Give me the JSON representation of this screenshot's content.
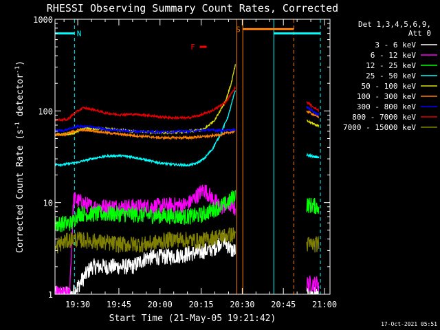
{
  "chart_data": {
    "type": "line",
    "title": "RHESSI Observing Summary Count Rates, Corrected",
    "xlabel": "Start Time (21-May-05 19:21:42)",
    "ylabel_main": "Corrected Count Rate (s",
    "ylabel_sup1": "-1",
    "ylabel_mid": " detector",
    "ylabel_sup2": "-1",
    "ylabel_end": ")",
    "yscale": "log",
    "ylim": [
      1,
      1000
    ],
    "xlim_min": [
      1161.7,
      1262
    ],
    "y_ticks": [
      {
        "value": 1,
        "label": "1"
      },
      {
        "value": 10,
        "label": "10"
      },
      {
        "value": 100,
        "label": "100"
      },
      {
        "value": 1000,
        "label": "1000"
      }
    ],
    "x_ticks": [
      {
        "value": 1170,
        "label": "19:30"
      },
      {
        "value": 1185,
        "label": "19:45"
      },
      {
        "value": 1200,
        "label": "20:00"
      },
      {
        "value": 1215,
        "label": "20:15"
      },
      {
        "value": 1230,
        "label": "20:30"
      },
      {
        "value": 1245,
        "label": "20:45"
      },
      {
        "value": 1260,
        "label": "21:00"
      }
    ],
    "legend_header": [
      "Det 1,3,4,5,6,9,",
      "Att 0"
    ],
    "legend_placement": "right",
    "series": [
      {
        "name": "3 - 6 keV",
        "color": "#ffffff",
        "segments": [
          [
            [
              1161.7,
              1.0
            ],
            [
              1168,
              1.0
            ],
            [
              1175,
              2.0
            ],
            [
              1190,
              2.0
            ],
            [
              1195,
              2.5
            ],
            [
              1205,
              2.6
            ],
            [
              1215,
              2.9
            ],
            [
              1220,
              3.2
            ],
            [
              1223,
              4.0
            ],
            [
              1226,
              3.0
            ],
            [
              1227.5,
              3.0
            ]
          ],
          [
            [
              1253.5,
              1.0
            ],
            [
              1258,
              1.0
            ]
          ]
        ]
      },
      {
        "name": "6 - 12 keV",
        "color": "#ff00ff",
        "segments": [
          [
            [
              1161.7,
              1.0
            ],
            [
              1167,
              1.0
            ],
            [
              1168.5,
              11.0
            ],
            [
              1175,
              9.0
            ],
            [
              1185,
              9.0
            ],
            [
              1195,
              9.0
            ],
            [
              1210,
              9.5
            ],
            [
              1216,
              14.0
            ],
            [
              1218,
              12.0
            ],
            [
              1222,
              9.0
            ],
            [
              1226,
              9.5
            ],
            [
              1227.5,
              8.5
            ]
          ],
          [
            [
              1253.5,
              1.3
            ],
            [
              1258,
              1.3
            ]
          ]
        ]
      },
      {
        "name": "12 - 25 keV",
        "color": "#00ff00",
        "segments": [
          [
            [
              1161.7,
              5.8
            ],
            [
              1168,
              6.0
            ],
            [
              1170,
              7.6
            ],
            [
              1175,
              7.5
            ],
            [
              1185,
              7.5
            ],
            [
              1200,
              7.2
            ],
            [
              1210,
              7.0
            ],
            [
              1215,
              7.3
            ],
            [
              1220,
              8.5
            ],
            [
              1225,
              10.0
            ],
            [
              1227.5,
              12.5
            ]
          ],
          [
            [
              1253.5,
              9.5
            ],
            [
              1258,
              9.0
            ]
          ]
        ]
      },
      {
        "name": "25 - 50 keV",
        "color": "#00ffff",
        "segments": [
          [
            [
              1161.7,
              26.0
            ],
            [
              1165,
              26.0
            ],
            [
              1170,
              27.5
            ],
            [
              1175,
              30.0
            ],
            [
              1180,
              32.0
            ],
            [
              1185,
              32.5
            ],
            [
              1190,
              31.5
            ],
            [
              1195,
              29.0
            ],
            [
              1200,
              27.0
            ],
            [
              1205,
              26.0
            ],
            [
              1210,
              25.5
            ],
            [
              1213,
              26.5
            ],
            [
              1216,
              30.0
            ],
            [
              1219,
              38.0
            ],
            [
              1222,
              55.0
            ],
            [
              1225,
              90.0
            ],
            [
              1227.5,
              170.0
            ]
          ],
          [
            [
              1253.5,
              33.0
            ],
            [
              1258,
              31.0
            ]
          ]
        ]
      },
      {
        "name": "50 - 100 keV",
        "color": "#e0e000",
        "segments": [
          [
            [
              1161.7,
              55.0
            ],
            [
              1168,
              56.0
            ],
            [
              1172,
              64.0
            ],
            [
              1180,
              64.0
            ],
            [
              1190,
              60.0
            ],
            [
              1200,
              58.0
            ],
            [
              1210,
              59.0
            ],
            [
              1216,
              63.0
            ],
            [
              1220,
              80.0
            ],
            [
              1224,
              130.0
            ],
            [
              1226,
              200.0
            ],
            [
              1227.5,
              320.0
            ]
          ],
          [
            [
              1253.5,
              78.0
            ],
            [
              1258,
              68.0
            ]
          ]
        ]
      },
      {
        "name": "100 - 300 keV",
        "color": "#ff8000",
        "segments": [
          [
            [
              1161.7,
              55.0
            ],
            [
              1165,
              55.0
            ],
            [
              1170,
              62.0
            ],
            [
              1175,
              61.0
            ],
            [
              1180,
              58.0
            ],
            [
              1190,
              54.0
            ],
            [
              1200,
              51.0
            ],
            [
              1210,
              51.0
            ],
            [
              1218,
              53.0
            ],
            [
              1222,
              55.0
            ],
            [
              1225,
              58.0
            ],
            [
              1227.5,
              60.0
            ]
          ],
          [
            [
              1253.5,
              100.0
            ],
            [
              1258,
              85.0
            ]
          ]
        ]
      },
      {
        "name": "300 - 800 keV",
        "color": "#0000ff",
        "segments": [
          [
            [
              1161.7,
              61.0
            ],
            [
              1165,
              61.0
            ],
            [
              1170,
              68.0
            ],
            [
              1175,
              67.0
            ],
            [
              1180,
              63.0
            ],
            [
              1190,
              60.0
            ],
            [
              1200,
              59.0
            ],
            [
              1210,
              60.0
            ],
            [
              1218,
              62.0
            ],
            [
              1222,
              61.0
            ],
            [
              1227.5,
              62.0
            ]
          ],
          [
            [
              1253.5,
              110.0
            ],
            [
              1258,
              90.0
            ]
          ]
        ]
      },
      {
        "name": "800 - 7000 keV",
        "color": "#e00000",
        "segments": [
          [
            [
              1161.7,
              80.0
            ],
            [
              1166,
              80.0
            ],
            [
              1170,
              100.0
            ],
            [
              1172,
              108.0
            ],
            [
              1176,
              103.0
            ],
            [
              1180,
              95.0
            ],
            [
              1185,
              91.0
            ],
            [
              1190,
              92.0
            ],
            [
              1195,
              90.0
            ],
            [
              1200,
              86.0
            ],
            [
              1205,
              84.0
            ],
            [
              1210,
              84.0
            ],
            [
              1215,
              90.0
            ],
            [
              1220,
              104.0
            ],
            [
              1224,
              125.0
            ],
            [
              1227.5,
              180.0
            ]
          ],
          [
            [
              1253.5,
              125.0
            ],
            [
              1258,
              100.0
            ]
          ]
        ]
      },
      {
        "name": "7000 - 15000 keV",
        "color": "#808000",
        "segments": [
          [
            [
              1161.7,
              3.0
            ],
            [
              1163,
              3.5
            ],
            [
              1168,
              4.0
            ],
            [
              1175,
              3.8
            ],
            [
              1185,
              3.5
            ],
            [
              1195,
              3.5
            ],
            [
              1205,
              4.0
            ],
            [
              1215,
              3.8
            ],
            [
              1220,
              4.2
            ],
            [
              1227.5,
              4.5
            ]
          ],
          [
            [
              1253.5,
              3.5
            ],
            [
              1258,
              3.5
            ]
          ]
        ]
      }
    ],
    "flag_bars": [
      {
        "label": "N",
        "color": "#00ffff",
        "y": 700,
        "x": [
          1161.7,
          1168.8
        ],
        "label_x": 1170.5
      },
      {
        "label": "F",
        "color": "#ff0000",
        "y": 500,
        "x": [
          1214.5,
          1217.0
        ],
        "label_x": 1212.0
      },
      {
        "label": "S",
        "color": "#ff8000",
        "y": 780,
        "x": [
          1230.2,
          1248.8
        ],
        "label_x": 1228.5
      },
      {
        "label": "",
        "color": "#00ffff",
        "y": 700,
        "x": [
          1241.5,
          1258.5
        ],
        "label_x": null
      }
    ],
    "vlines": [
      {
        "x": 1168.8,
        "color": "#00ffff",
        "dashed": true
      },
      {
        "x": 1228.0,
        "color": "#ff8000",
        "dashed": false
      },
      {
        "x": 1230.2,
        "color": "#ff8000",
        "dashed": false
      },
      {
        "x": 1241.5,
        "color": "#00ffff",
        "dashed": false
      },
      {
        "x": 1248.8,
        "color": "#ff8000",
        "dashed": true
      },
      {
        "x": 1258.5,
        "color": "#00ffff",
        "dashed": true
      }
    ]
  },
  "footer_timestamp": "17-Oct-2021 05:51"
}
